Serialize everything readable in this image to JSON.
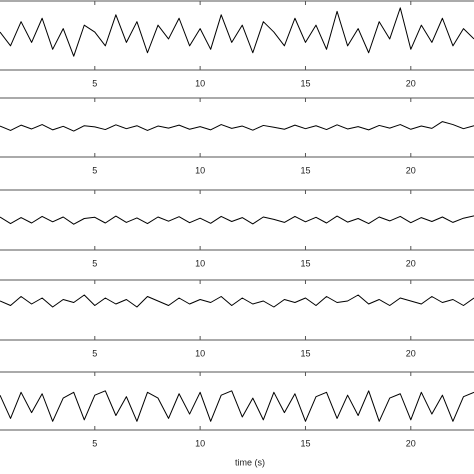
{
  "chart_data": [
    {
      "type": "line",
      "xlim": [
        0.5,
        23
      ],
      "xticks": [
        5,
        10,
        15,
        20
      ],
      "ylim": [
        -1,
        1
      ],
      "color": "#000000",
      "x": [
        0.5,
        1,
        1.5,
        2,
        2.5,
        3,
        3.5,
        4,
        4.5,
        5,
        5.5,
        6,
        6.5,
        7,
        7.5,
        8,
        8.5,
        9,
        9.5,
        10,
        10.5,
        11,
        11.5,
        12,
        12.5,
        13,
        13.5,
        14,
        14.5,
        15,
        15.5,
        16,
        16.5,
        17,
        17.5,
        18,
        18.5,
        19,
        19.5,
        20,
        20.5,
        21,
        21.5,
        22,
        22.5,
        23
      ],
      "values": [
        0.1,
        -0.3,
        0.4,
        -0.2,
        0.5,
        -0.4,
        0.2,
        -0.6,
        0.3,
        0.1,
        -0.3,
        0.6,
        -0.2,
        0.4,
        -0.5,
        0.3,
        -0.1,
        0.5,
        -0.3,
        0.2,
        -0.4,
        0.6,
        -0.2,
        0.3,
        -0.5,
        0.4,
        0.1,
        -0.3,
        0.5,
        -0.2,
        0.3,
        -0.4,
        0.7,
        -0.3,
        0.2,
        -0.5,
        0.4,
        -0.1,
        0.8,
        -0.4,
        0.3,
        -0.2,
        0.5,
        -0.3,
        0.2,
        -0.1
      ]
    },
    {
      "type": "line",
      "xlim": [
        0.5,
        23
      ],
      "xticks": [
        5,
        10,
        15,
        20
      ],
      "ylim": [
        -1,
        1
      ],
      "color": "#000000",
      "x": [
        0.5,
        1,
        1.5,
        2,
        2.5,
        3,
        3.5,
        4,
        4.5,
        5,
        5.5,
        6,
        6.5,
        7,
        7.5,
        8,
        8.5,
        9,
        9.5,
        10,
        10.5,
        11,
        11.5,
        12,
        12.5,
        13,
        13.5,
        14,
        14.5,
        15,
        15.5,
        16,
        16.5,
        17,
        17.5,
        18,
        18.5,
        19,
        19.5,
        20,
        20.5,
        21,
        21.5,
        22,
        22.5,
        23
      ],
      "values": [
        0.05,
        -0.1,
        0.08,
        -0.05,
        0.1,
        -0.08,
        0.04,
        -0.12,
        0.06,
        0.02,
        -0.07,
        0.09,
        -0.04,
        0.06,
        -0.1,
        0.05,
        -0.02,
        0.08,
        -0.06,
        0.03,
        -0.08,
        0.1,
        -0.03,
        0.05,
        -0.09,
        0.07,
        0.01,
        -0.06,
        0.08,
        -0.04,
        0.06,
        -0.07,
        0.09,
        -0.05,
        0.03,
        -0.08,
        0.07,
        -0.02,
        0.1,
        -0.06,
        0.05,
        -0.03,
        0.2,
        0.1,
        -0.04,
        0.06
      ]
    },
    {
      "type": "line",
      "xlim": [
        0.5,
        23
      ],
      "xticks": [
        5,
        10,
        15,
        20
      ],
      "ylim": [
        -1,
        1
      ],
      "color": "#000000",
      "x": [
        0.5,
        1,
        1.5,
        2,
        2.5,
        3,
        3.5,
        4,
        4.5,
        5,
        5.5,
        6,
        6.5,
        7,
        7.5,
        8,
        8.5,
        9,
        9.5,
        10,
        10.5,
        11,
        11.5,
        12,
        12.5,
        13,
        13.5,
        14,
        14.5,
        15,
        15.5,
        16,
        16.5,
        17,
        17.5,
        18,
        18.5,
        19,
        19.5,
        20,
        20.5,
        21,
        21.5,
        22,
        22.5,
        23
      ],
      "values": [
        0.1,
        -0.12,
        0.08,
        -0.1,
        0.12,
        -0.06,
        0.1,
        -0.14,
        0.05,
        0.09,
        -0.1,
        0.13,
        -0.08,
        0.07,
        -0.12,
        0.1,
        -0.04,
        0.11,
        -0.09,
        0.06,
        -0.11,
        0.12,
        -0.05,
        0.08,
        -0.13,
        0.1,
        0.02,
        -0.08,
        0.12,
        -0.06,
        0.09,
        -0.1,
        0.13,
        -0.07,
        0.05,
        -0.12,
        0.1,
        -0.03,
        0.12,
        -0.09,
        0.08,
        -0.05,
        0.1,
        -0.08,
        0.06,
        0.14
      ]
    },
    {
      "type": "line",
      "xlim": [
        0.5,
        23
      ],
      "xticks": [
        5,
        10,
        15,
        20
      ],
      "ylim": [
        -1,
        1
      ],
      "color": "#000000",
      "x": [
        0.5,
        1,
        1.5,
        2,
        2.5,
        3,
        3.5,
        4,
        4.5,
        5,
        5.5,
        6,
        6.5,
        7,
        7.5,
        8,
        8.5,
        9,
        9.5,
        10,
        10.5,
        11,
        11.5,
        12,
        12.5,
        13,
        13.5,
        14,
        14.5,
        15,
        15.5,
        16,
        16.5,
        17,
        17.5,
        18,
        18.5,
        19,
        19.5,
        20,
        20.5,
        21,
        21.5,
        22,
        22.5,
        23
      ],
      "values": [
        0.3,
        0.15,
        0.45,
        0.2,
        0.4,
        0.1,
        0.35,
        0.25,
        0.5,
        0.15,
        0.4,
        0.2,
        0.35,
        0.1,
        0.45,
        0.3,
        0.15,
        0.4,
        0.2,
        0.35,
        0.25,
        0.45,
        0.15,
        0.4,
        0.2,
        0.3,
        0.1,
        0.35,
        0.25,
        0.4,
        0.15,
        0.45,
        0.25,
        0.3,
        0.5,
        0.2,
        0.35,
        0.15,
        0.4,
        0.3,
        0.2,
        0.45,
        0.25,
        0.35,
        0.15,
        0.4
      ]
    },
    {
      "type": "line",
      "xlim": [
        0.5,
        23
      ],
      "xticks": [
        5,
        10,
        15,
        20
      ],
      "ylim": [
        -1,
        1
      ],
      "color": "#000000",
      "xlabel": "time (s)",
      "x": [
        0.5,
        1,
        1.5,
        2,
        2.5,
        3,
        3.5,
        4,
        4.5,
        5,
        5.5,
        6,
        6.5,
        7,
        7.5,
        8,
        8.5,
        9,
        9.5,
        10,
        10.5,
        11,
        11.5,
        12,
        12.5,
        13,
        13.5,
        14,
        14.5,
        15,
        15.5,
        16,
        16.5,
        17,
        17.5,
        18,
        18.5,
        19,
        19.5,
        20,
        20.5,
        21,
        21.5,
        22,
        22.5,
        23
      ],
      "values": [
        0.2,
        -0.6,
        0.3,
        -0.4,
        0.25,
        -0.7,
        0.1,
        0.3,
        -0.65,
        0.2,
        0.35,
        -0.5,
        0.15,
        -0.7,
        0.3,
        0.1,
        -0.6,
        0.25,
        -0.45,
        0.3,
        -0.7,
        0.2,
        0.35,
        -0.55,
        0.1,
        -0.65,
        0.3,
        -0.4,
        0.25,
        -0.7,
        0.15,
        0.3,
        -0.6,
        0.2,
        -0.5,
        0.35,
        -0.7,
        0.1,
        0.25,
        -0.65,
        0.3,
        -0.45,
        0.2,
        -0.7,
        0.15,
        0.3
      ]
    }
  ]
}
